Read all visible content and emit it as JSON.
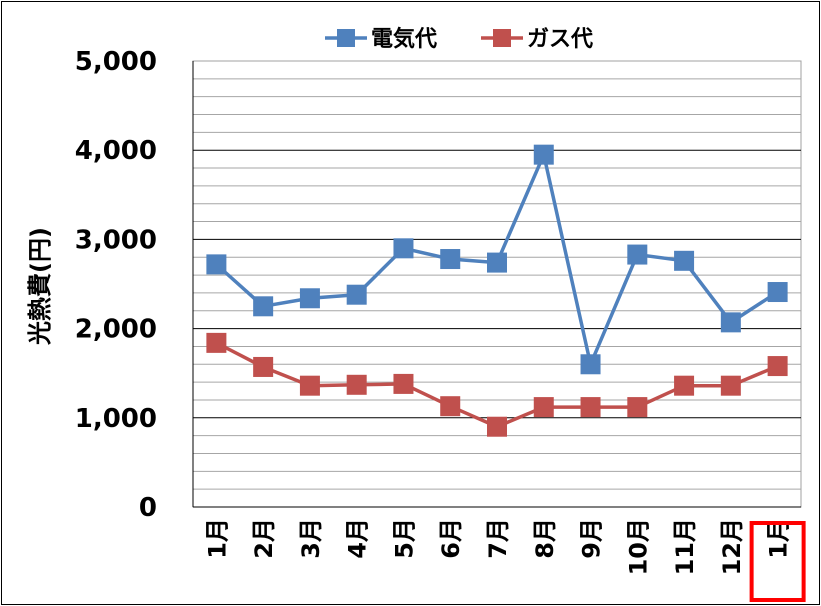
{
  "chart_data": {
    "type": "line",
    "title": "",
    "xlabel": "",
    "ylabel": "光熱費(円)",
    "ylim": [
      0,
      5000
    ],
    "y_major_step": 1000,
    "y_minor_step": 200,
    "yticks": [
      "0",
      "1,000",
      "2,000",
      "3,000",
      "4,000",
      "5,000"
    ],
    "categories": [
      "1月",
      "2月",
      "3月",
      "4月",
      "5月",
      "6月",
      "7月",
      "8月",
      "9月",
      "10月",
      "11月",
      "12月",
      "1月"
    ],
    "highlighted_category_index": 12,
    "highlight_color": "#ff0000",
    "legend_position": "top",
    "grid": true,
    "series": [
      {
        "name": "電気代",
        "color": "#4f81bd",
        "marker": "square",
        "values": [
          2720,
          2250,
          2340,
          2380,
          2900,
          2780,
          2740,
          3950,
          1600,
          2830,
          2760,
          2070,
          2410
        ]
      },
      {
        "name": "ガス代",
        "color": "#c0504d",
        "marker": "square",
        "values": [
          1840,
          1570,
          1360,
          1370,
          1380,
          1130,
          900,
          1120,
          1120,
          1120,
          1360,
          1360,
          1580
        ]
      }
    ]
  }
}
